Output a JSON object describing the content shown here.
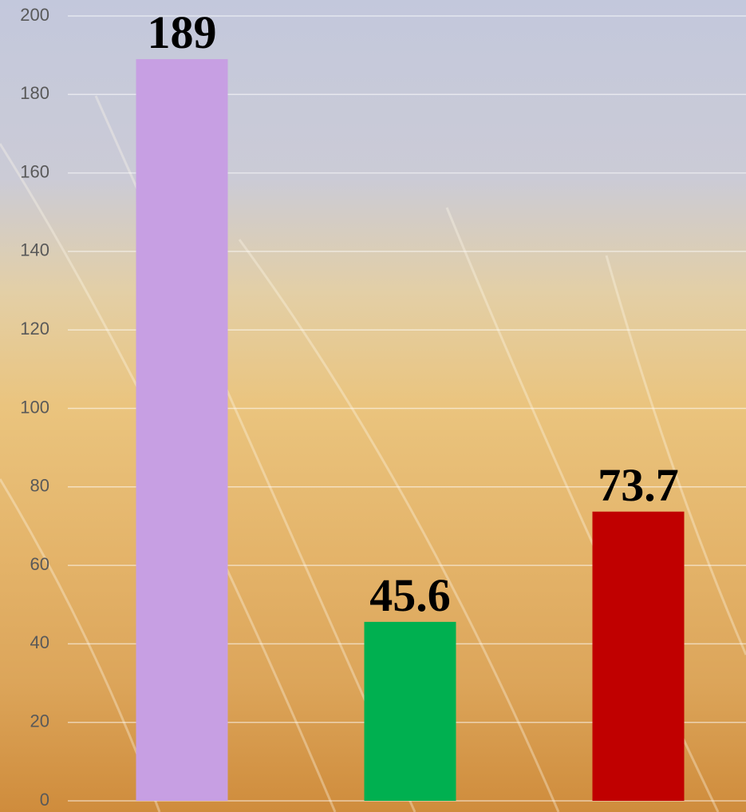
{
  "chart_data": {
    "type": "bar",
    "categories": [
      null,
      null,
      null
    ],
    "values": [
      189,
      45.6,
      73.7
    ],
    "colors": [
      "#c79fe3",
      "#00b050",
      "#c00000"
    ],
    "ylim": [
      0,
      200
    ],
    "yticks": [
      0,
      20,
      40,
      60,
      80,
      100,
      120,
      140,
      160,
      180,
      200
    ],
    "grid": true,
    "data_labels": true
  }
}
